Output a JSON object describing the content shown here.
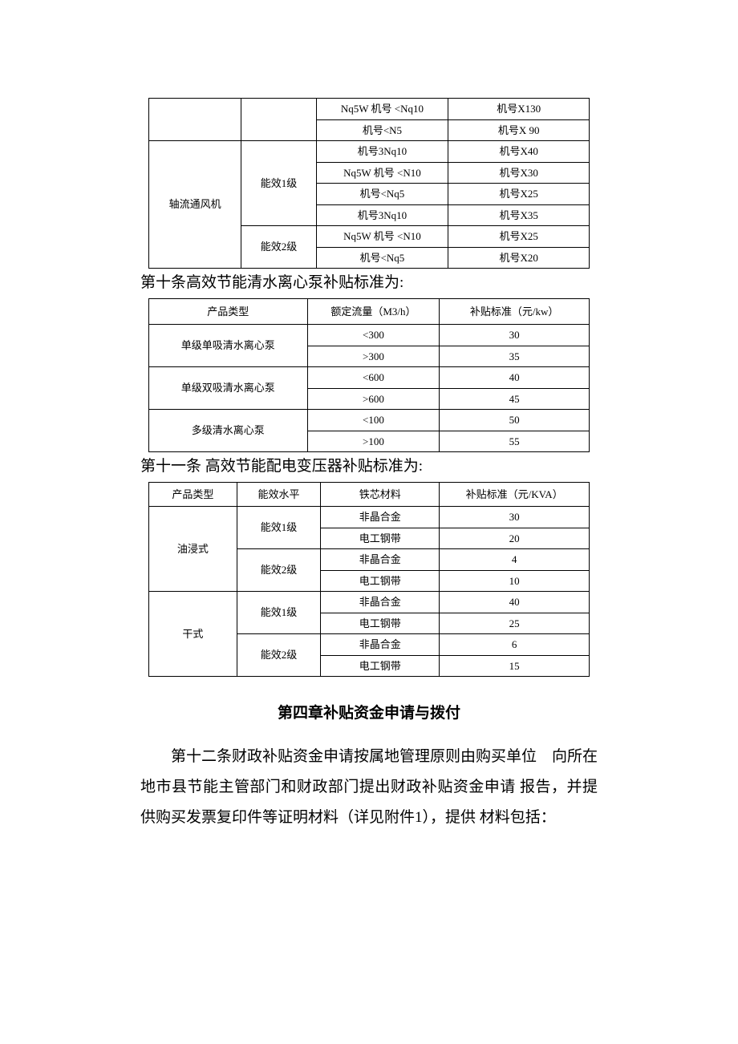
{
  "table1": {
    "cols": [
      "",
      "",
      "Nq5W 机号 <Nq10",
      "机号X130"
    ],
    "rows": [
      {
        "c3": "机号<N5",
        "c4": "机号X 90"
      },
      {
        "c1": "轴流通风机",
        "c2": "能效1级",
        "c3": "机号3Nq10",
        "c4": "机号X40"
      },
      {
        "c3": "Nq5W 机号 <N10",
        "c4": "机号X30"
      },
      {
        "c3": "机号<Nq5",
        "c4": "机号X25"
      },
      {
        "c3": "机号3Nq10",
        "c4": "机号X35"
      },
      {
        "c2": "能效2级",
        "c3": "Nq5W 机号 <N10",
        "c4": "机号X25"
      },
      {
        "c3": "机号<Nq5",
        "c4": "机号X20"
      }
    ]
  },
  "heading10": "第十条高效节能清水离心泵补贴标准为:",
  "table2": {
    "header": [
      "产品类型",
      "额定流量（M3/h）",
      "补贴标准（元/kw）"
    ],
    "groups": [
      {
        "type": "单级单吸清水离心泵",
        "rows": [
          [
            "<300",
            "30"
          ],
          [
            ">300",
            "35"
          ]
        ]
      },
      {
        "type": "单级双吸清水离心泵",
        "rows": [
          [
            "<600",
            "40"
          ],
          [
            ">600",
            "45"
          ]
        ]
      },
      {
        "type": "多级清水离心泵",
        "rows": [
          [
            "<100",
            "50"
          ],
          [
            ">100",
            "55"
          ]
        ]
      }
    ]
  },
  "heading11": "第十一条 高效节能配电变压器补贴标准为:",
  "table3": {
    "header": [
      "产品类型",
      "能效水平",
      "铁芯材料",
      "补贴标准（元/KVA）"
    ],
    "groups": [
      {
        "type": "油浸式",
        "levels": [
          {
            "level": "能效1级",
            "rows": [
              [
                "非晶合金",
                "30"
              ],
              [
                "电工钢带",
                "20"
              ]
            ]
          },
          {
            "level": "能效2级",
            "rows": [
              [
                "非晶合金",
                "4"
              ],
              [
                "电工钢带",
                "10"
              ]
            ]
          }
        ]
      },
      {
        "type": "干式",
        "levels": [
          {
            "level": "能效1级",
            "rows": [
              [
                "非晶合金",
                "40"
              ],
              [
                "电工钢带",
                "25"
              ]
            ]
          },
          {
            "level": "能效2级",
            "rows": [
              [
                "非晶合金",
                "6"
              ],
              [
                "电工钢带",
                "15"
              ]
            ]
          }
        ]
      }
    ]
  },
  "chapter4": "第四章补贴资金申请与拨付",
  "para12": "第十二条财政补贴资金申请按属地管理原则由购买单位　向所在地市县节能主管部门和财政部门提出财政补贴资金申请 报告，并提供购买发票复印件等证明材料（详见附件1），提供 材料包括："
}
